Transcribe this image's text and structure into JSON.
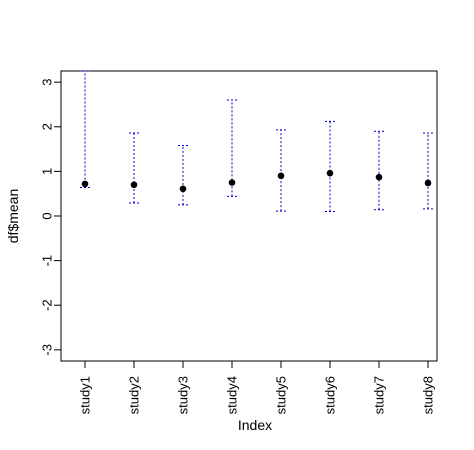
{
  "chart_data": {
    "type": "scatter",
    "xlabel": "Index",
    "ylabel": "df$mean",
    "categories": [
      "study1",
      "study2",
      "study3",
      "study4",
      "study5",
      "study6",
      "study7",
      "study8"
    ],
    "ylim": [
      -3.25,
      3.25
    ],
    "yticks": [
      -3,
      -2,
      -1,
      0,
      1,
      2,
      3
    ],
    "grid": false,
    "series": [
      {
        "values": [
          0.72,
          0.7,
          0.61,
          0.75,
          0.9,
          0.96,
          0.87,
          0.74
        ],
        "lower": [
          0.64,
          0.29,
          0.25,
          0.44,
          0.11,
          0.1,
          0.14,
          0.16
        ],
        "upper": [
          3.25,
          1.86,
          1.58,
          2.6,
          1.93,
          2.12,
          1.9,
          1.86
        ]
      }
    ],
    "colors": {
      "point": "#000000",
      "errorbar": "#0000cc",
      "axis": "#000000"
    }
  }
}
